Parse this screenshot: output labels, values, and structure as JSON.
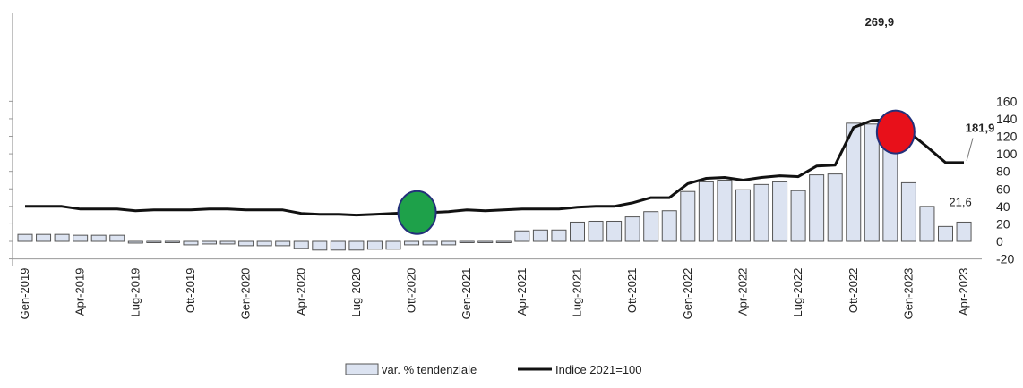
{
  "chart_data": {
    "type": "bar",
    "right_axis": {
      "ylim": [
        -20,
        160
      ],
      "ticks": [
        "-20",
        "0",
        "20",
        "40",
        "60",
        "80",
        "100",
        "120",
        "140",
        "160"
      ]
    },
    "x": [
      "Gen-2019",
      "Feb-2019",
      "Mar-2019",
      "Apr-2019",
      "Mag-2019",
      "Giu-2019",
      "Lug-2019",
      "Ago-2019",
      "Set-2019",
      "Ott-2019",
      "Nov-2019",
      "Dic-2019",
      "Gen-2020",
      "Feb-2020",
      "Mar-2020",
      "Apr-2020",
      "Mag-2020",
      "Giu-2020",
      "Lug-2020",
      "Ago-2020",
      "Set-2020",
      "Ott-2020",
      "Nov-2020",
      "Dic-2020",
      "Gen-2021",
      "Feb-2021",
      "Mar-2021",
      "Apr-2021",
      "Mag-2021",
      "Giu-2021",
      "Lug-2021",
      "Ago-2021",
      "Set-2021",
      "Ott-2021",
      "Nov-2021",
      "Dic-2021",
      "Gen-2022",
      "Feb-2022",
      "Mar-2022",
      "Apr-2022",
      "Mag-2022",
      "Giu-2022",
      "Lug-2022",
      "Ago-2022",
      "Set-2022",
      "Ott-2022",
      "Nov-2022",
      "Dic-2022",
      "Gen-2023",
      "Feb-2023",
      "Mar-2023",
      "Apr-2023"
    ],
    "x_tick_labels": [
      "Gen-2019",
      "Apr-2019",
      "Lug-2019",
      "Ott-2019",
      "Gen-2020",
      "Apr-2020",
      "Lug-2020",
      "Ott-2020",
      "Gen-2021",
      "Apr-2021",
      "Lug-2021",
      "Ott-2021",
      "Gen-2022",
      "Apr-2022",
      "Lug-2022",
      "Ott-2022",
      "Gen-2023",
      "Apr-2023"
    ],
    "series": [
      {
        "name": "var. % tendenziale",
        "kind": "bar",
        "values": [
          8,
          8,
          8,
          7,
          7,
          7,
          -2,
          -1,
          -1,
          -4,
          -3,
          -3,
          -5,
          -5,
          -5,
          -8,
          -10,
          -10,
          -10,
          -9,
          -9,
          -4,
          -4,
          -4,
          -1,
          -1,
          0,
          12,
          13,
          13,
          22,
          23,
          23,
          28,
          34,
          35,
          57,
          68,
          70,
          59,
          65,
          68,
          58,
          76,
          77,
          135,
          134,
          125,
          67,
          40,
          17,
          22
        ],
        "color": "#dce3f1"
      },
      {
        "name": "Indice 2021=100",
        "kind": "line",
        "values": [
          40,
          40,
          40,
          37,
          37,
          37,
          35,
          36,
          36,
          36,
          37,
          37,
          36,
          36,
          36,
          32,
          31,
          31,
          30,
          31,
          32,
          33,
          33,
          34,
          36,
          35,
          36,
          37,
          37,
          37,
          39,
          40,
          40,
          44,
          50,
          50,
          66,
          72,
          73,
          70,
          73,
          75,
          74,
          86,
          87,
          130,
          138,
          139,
          125,
          108,
          90,
          90
        ],
        "color": "#111111"
      }
    ],
    "annotations": [
      {
        "text": "269,9",
        "at": "Dic-2022",
        "bold": true
      },
      {
        "text": "181,9",
        "at": "Apr-2023",
        "bold": true
      },
      {
        "text": "21,6",
        "at": "Apr-2023",
        "bold": false
      }
    ],
    "markers": [
      {
        "at": "Ott-2020",
        "value": 33,
        "color": "#1ea14a"
      },
      {
        "at": "Dic-2022",
        "value": 125,
        "color": "#e8101a"
      }
    ],
    "legend": {
      "placement": "bottom"
    }
  }
}
